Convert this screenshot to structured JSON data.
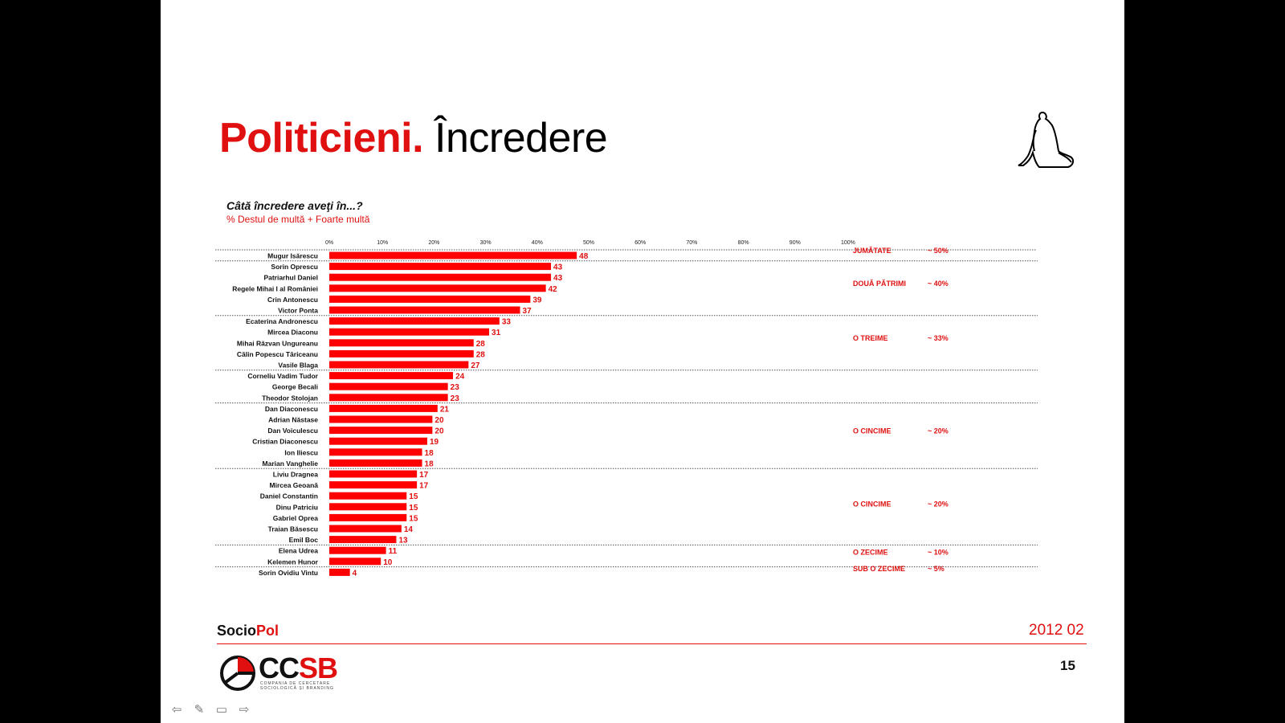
{
  "slide": {
    "title_bold": "Politicieni.",
    "title_rest": " Încredere",
    "question": "Câtă încredere aveţi în...?",
    "subquestion": "% Destul de multă + Foarte multă",
    "brand_a": "Socio",
    "brand_b": "Pol",
    "date": "2012 02",
    "page_number": "15",
    "logo_main_a": "CC",
    "logo_main_b": "SB",
    "logo_sub": "COMPANIA DE CERCETARE SOCIOLOGICĂ ŞI BRANDING",
    "nav_icons": [
      "arrow-left-icon",
      "pen-icon",
      "slides-icon",
      "arrow-right-icon"
    ]
  },
  "chart_data": {
    "type": "bar",
    "orientation": "horizontal",
    "xlim": [
      0,
      100
    ],
    "x_ticks": [
      "0%",
      "10%",
      "20%",
      "30%",
      "40%",
      "50%",
      "60%",
      "70%",
      "80%",
      "90%",
      "100%"
    ],
    "bar_color": "#ff0000",
    "label_color": "#e01010",
    "categories": [
      "Mugur Isărescu",
      "Sorin Oprescu",
      "Patriarhul Daniel",
      "Regele Mihai I al României",
      "Crin Antonescu",
      "Victor Ponta",
      "Ecaterina Andronescu",
      "Mircea Diaconu",
      "Mihai Răzvan Ungureanu",
      "Călin Popescu Tăriceanu",
      "Vasile Blaga",
      "Corneliu Vadim Tudor",
      "George Becali",
      "Theodor Stolojan",
      "Dan Diaconescu",
      "Adrian Năstase",
      "Dan Voiculescu",
      "Cristian Diaconescu",
      "Ion Iliescu",
      "Marian Vanghelie",
      "Liviu Dragnea",
      "Mircea Geoană",
      "Daniel Constantin",
      "Dinu Patriciu",
      "Gabriel Oprea",
      "Traian Băsescu",
      "Emil Boc",
      "Elena Udrea",
      "Kelemen Hunor",
      "Sorin Ovidiu Vintu"
    ],
    "values": [
      48,
      43,
      43,
      42,
      39,
      37,
      33,
      31,
      28,
      28,
      27,
      24,
      23,
      23,
      21,
      20,
      20,
      19,
      18,
      18,
      17,
      17,
      15,
      15,
      15,
      14,
      13,
      11,
      10,
      4
    ],
    "group_separators_after": [
      0,
      5,
      10,
      13,
      19,
      26,
      28
    ],
    "group_annotations": [
      {
        "label": "JUMĂTATE",
        "approx": "~ 50%",
        "row": 0
      },
      {
        "label": "DOUĂ PĂTRIMI",
        "approx": "~ 40%",
        "row": 3
      },
      {
        "label": "O TREIME",
        "approx": "~ 33%",
        "row": 8
      },
      {
        "label": "O CINCIME",
        "approx": "~ 20%",
        "row": 16.5
      },
      {
        "label": "O CINCIME",
        "approx": "~ 20%",
        "row": 23.2
      },
      {
        "label": "O ZECIME",
        "approx": "~ 10%",
        "row": 27.6
      },
      {
        "label": "SUB O ZECIME",
        "approx": "~ 5%",
        "row": 29.1
      }
    ]
  }
}
